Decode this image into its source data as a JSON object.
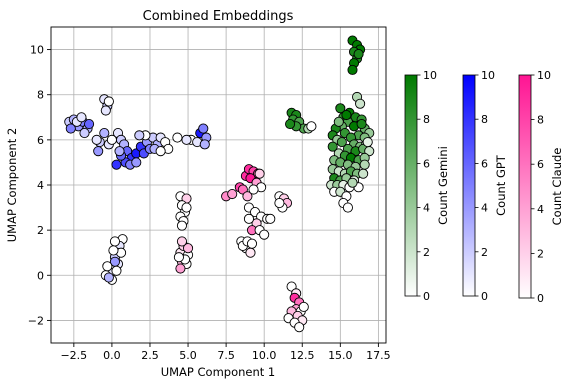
{
  "chart_data": {
    "type": "scatter",
    "title": "Combined Embeddings",
    "xlabel": "UMAP Component 1",
    "ylabel": "UMAP Component 2",
    "xlim": [
      -4,
      18
    ],
    "ylim": [
      -3,
      11
    ],
    "xticks": [
      -2.5,
      0.0,
      2.5,
      5.0,
      7.5,
      10.0,
      12.5,
      15.0,
      17.5
    ],
    "xtick_labels": [
      "−2.5",
      "0.0",
      "2.5",
      "5.0",
      "7.5",
      "10.0",
      "12.5",
      "15.0",
      "17.5"
    ],
    "yticks": [
      -2,
      0,
      2,
      4,
      6,
      8,
      10
    ],
    "ytick_labels": [
      "−2",
      "0",
      "2",
      "4",
      "6",
      "8",
      "10"
    ],
    "grid": true,
    "colorbars": [
      {
        "label": "Count Gemini",
        "color": "#007a00",
        "range": [
          0,
          10
        ],
        "ticks": [
          "0",
          "2",
          "4",
          "6",
          "8",
          "10"
        ]
      },
      {
        "label": "Count GPT",
        "color": "#0000ff",
        "range": [
          0,
          10
        ],
        "ticks": [
          "0",
          "2",
          "4",
          "6",
          "8",
          "10"
        ]
      },
      {
        "label": "Count Claude",
        "color": "#ff1493",
        "range": [
          0,
          10
        ],
        "ticks": [
          "0",
          "2",
          "4",
          "6",
          "8",
          "10"
        ]
      }
    ],
    "series": [
      {
        "model": "GPT",
        "points": [
          [
            -2.8,
            6.8,
            2
          ],
          [
            -2.5,
            6.9,
            3
          ],
          [
            -2.2,
            6.6,
            4
          ],
          [
            -1.9,
            6.8,
            5
          ],
          [
            -1.6,
            6.5,
            3
          ],
          [
            -2.7,
            6.5,
            5
          ],
          [
            -2.3,
            6.8,
            1
          ],
          [
            -1.5,
            6.7,
            6
          ],
          [
            -1.8,
            6.3,
            2
          ],
          [
            -2.0,
            7.0,
            1
          ],
          [
            -0.5,
            7.8,
            1
          ],
          [
            -0.3,
            7.5,
            2
          ],
          [
            -0.2,
            7.7,
            0
          ],
          [
            -0.4,
            7.3,
            1
          ],
          [
            -0.8,
            5.9,
            2
          ],
          [
            -0.5,
            6.3,
            3
          ],
          [
            -0.2,
            5.8,
            1
          ],
          [
            0.0,
            6.0,
            0
          ],
          [
            0.4,
            6.3,
            1
          ],
          [
            0.6,
            6.0,
            2
          ],
          [
            0.8,
            5.8,
            3
          ],
          [
            1.0,
            5.5,
            6
          ],
          [
            1.3,
            5.2,
            8
          ],
          [
            1.6,
            5.4,
            9
          ],
          [
            1.9,
            5.7,
            8
          ],
          [
            2.1,
            5.4,
            7
          ],
          [
            2.3,
            5.9,
            4
          ],
          [
            2.5,
            5.6,
            5
          ],
          [
            2.7,
            6.1,
            2
          ],
          [
            3.0,
            5.8,
            3
          ],
          [
            3.2,
            6.1,
            1
          ],
          [
            3.5,
            5.9,
            0
          ],
          [
            2.2,
            6.2,
            0
          ],
          [
            1.8,
            6.2,
            2
          ],
          [
            0.9,
            5.0,
            7
          ],
          [
            0.6,
            5.3,
            6
          ],
          [
            0.3,
            4.9,
            8
          ],
          [
            1.2,
            4.9,
            5
          ],
          [
            1.6,
            5.0,
            4
          ],
          [
            0.5,
            5.5,
            3
          ],
          [
            -0.9,
            5.5,
            4
          ],
          [
            -1.0,
            6.0,
            1
          ],
          [
            2.8,
            5.6,
            3
          ],
          [
            3.7,
            5.6,
            0
          ],
          [
            5.2,
            6.0,
            0
          ],
          [
            5.8,
            6.3,
            9
          ],
          [
            6.0,
            6.5,
            5
          ],
          [
            6.2,
            6.1,
            4
          ],
          [
            5.6,
            5.9,
            1
          ],
          [
            6.1,
            5.8,
            3
          ],
          [
            4.3,
            6.1,
            0
          ],
          [
            4.9,
            6.0,
            1
          ],
          [
            3.2,
            5.5,
            0
          ],
          [
            0.7,
            1.6,
            0
          ],
          [
            0.5,
            1.3,
            1
          ],
          [
            0.3,
            1.0,
            0
          ],
          [
            0.2,
            0.8,
            2
          ],
          [
            0.4,
            0.5,
            1
          ],
          [
            0.1,
            0.3,
            0
          ],
          [
            -0.1,
            0.1,
            1
          ],
          [
            -0.4,
            0.0,
            0
          ],
          [
            0.0,
            -0.2,
            0
          ],
          [
            0.2,
            0.6,
            4
          ],
          [
            -0.3,
            0.4,
            0
          ],
          [
            0.6,
            1.0,
            0
          ],
          [
            0.2,
            1.5,
            0
          ],
          [
            0.1,
            1.1,
            0
          ],
          [
            -0.2,
            -0.1,
            3
          ],
          [
            0.3,
            0.2,
            0
          ]
        ]
      },
      {
        "model": "Claude",
        "points": [
          [
            4.5,
            3.5,
            0
          ],
          [
            4.9,
            3.4,
            2
          ],
          [
            4.6,
            3.1,
            0
          ],
          [
            4.8,
            2.8,
            0
          ],
          [
            4.5,
            2.6,
            0
          ],
          [
            4.7,
            2.4,
            0
          ],
          [
            4.9,
            3.0,
            0
          ],
          [
            4.6,
            2.2,
            0
          ],
          [
            4.5,
            1.0,
            1
          ],
          [
            4.7,
            1.3,
            2
          ],
          [
            5.0,
            0.9,
            0
          ],
          [
            4.6,
            0.6,
            3
          ],
          [
            4.9,
            0.5,
            0
          ],
          [
            4.5,
            0.3,
            4
          ],
          [
            4.8,
            0.7,
            0
          ],
          [
            4.4,
            0.8,
            0
          ],
          [
            5.0,
            1.2,
            3
          ],
          [
            4.6,
            1.5,
            2
          ],
          [
            7.5,
            3.5,
            5
          ],
          [
            7.9,
            3.6,
            4
          ],
          [
            8.4,
            3.9,
            8
          ],
          [
            8.8,
            4.4,
            9
          ],
          [
            9.0,
            4.7,
            9
          ],
          [
            9.3,
            4.6,
            8
          ],
          [
            9.6,
            4.5,
            7
          ],
          [
            9.1,
            4.3,
            10
          ],
          [
            8.6,
            3.8,
            6
          ],
          [
            8.9,
            3.5,
            3
          ],
          [
            9.5,
            4.1,
            4
          ],
          [
            9.7,
            4.5,
            2
          ],
          [
            9.8,
            3.9,
            0
          ],
          [
            9.3,
            3.8,
            0
          ],
          [
            9.0,
            3.0,
            0
          ],
          [
            9.4,
            2.8,
            0
          ],
          [
            9.8,
            2.6,
            0
          ],
          [
            10.2,
            2.5,
            0
          ],
          [
            9.5,
            2.3,
            2
          ],
          [
            9.2,
            2.0,
            6
          ],
          [
            9.7,
            2.0,
            0
          ],
          [
            10.0,
            1.8,
            0
          ],
          [
            9.0,
            2.5,
            0
          ],
          [
            10.4,
            2.5,
            0
          ],
          [
            8.5,
            1.5,
            0
          ],
          [
            8.8,
            1.2,
            0
          ],
          [
            9.1,
            1.0,
            1
          ],
          [
            8.6,
            1.3,
            0
          ],
          [
            8.9,
            1.5,
            0
          ],
          [
            9.2,
            1.4,
            0
          ],
          [
            11.0,
            3.5,
            0
          ],
          [
            11.3,
            3.4,
            2
          ],
          [
            11.5,
            3.2,
            3
          ],
          [
            11.2,
            3.0,
            0
          ],
          [
            11.0,
            3.2,
            0
          ],
          [
            11.8,
            -0.5,
            0
          ],
          [
            12.1,
            -0.8,
            1
          ],
          [
            12.0,
            -1.0,
            9
          ],
          [
            12.3,
            -1.2,
            6
          ],
          [
            12.1,
            -1.5,
            4
          ],
          [
            11.8,
            -1.6,
            3
          ],
          [
            12.4,
            -1.6,
            0
          ],
          [
            12.2,
            -1.8,
            2
          ],
          [
            11.6,
            -1.9,
            0
          ],
          [
            12.5,
            -2.0,
            1
          ],
          [
            12.0,
            -2.1,
            0
          ],
          [
            12.3,
            -2.3,
            0
          ],
          [
            12.6,
            -1.4,
            0
          ]
        ]
      },
      {
        "model": "Gemini",
        "points": [
          [
            11.8,
            7.2,
            9
          ],
          [
            12.1,
            7.1,
            9
          ],
          [
            11.9,
            6.9,
            8
          ],
          [
            12.3,
            6.8,
            7
          ],
          [
            12.6,
            6.5,
            7
          ],
          [
            12.1,
            6.6,
            8
          ],
          [
            11.7,
            6.7,
            9
          ],
          [
            12.9,
            6.5,
            3
          ],
          [
            13.1,
            6.6,
            0
          ],
          [
            15.8,
            10.4,
            10
          ],
          [
            16.1,
            10.2,
            10
          ],
          [
            16.3,
            10.0,
            10
          ],
          [
            15.9,
            9.9,
            9
          ],
          [
            16.1,
            9.6,
            9
          ],
          [
            15.9,
            9.4,
            10
          ],
          [
            15.8,
            9.1,
            10
          ],
          [
            16.2,
            9.8,
            9
          ],
          [
            16.1,
            7.9,
            3
          ],
          [
            16.3,
            7.6,
            2
          ],
          [
            15.0,
            7.4,
            9
          ],
          [
            15.6,
            7.2,
            10
          ],
          [
            15.2,
            7.0,
            8
          ],
          [
            16.0,
            7.0,
            9
          ],
          [
            16.4,
            6.9,
            8
          ],
          [
            15.5,
            6.8,
            7
          ],
          [
            15.1,
            6.6,
            6
          ],
          [
            14.7,
            6.5,
            9
          ],
          [
            15.9,
            6.6,
            10
          ],
          [
            16.6,
            6.5,
            6
          ],
          [
            16.9,
            6.3,
            4
          ],
          [
            15.3,
            6.3,
            8
          ],
          [
            14.5,
            6.2,
            9
          ],
          [
            16.2,
            6.2,
            7
          ],
          [
            15.7,
            6.1,
            8
          ],
          [
            16.6,
            6.1,
            5
          ],
          [
            14.8,
            6.0,
            4
          ],
          [
            15.1,
            5.9,
            7
          ],
          [
            15.9,
            5.8,
            6
          ],
          [
            16.3,
            5.7,
            5
          ],
          [
            16.7,
            5.8,
            3
          ],
          [
            14.5,
            5.7,
            8
          ],
          [
            15.5,
            5.6,
            7
          ],
          [
            16.0,
            5.5,
            9
          ],
          [
            16.5,
            5.6,
            6
          ],
          [
            16.9,
            5.5,
            2
          ],
          [
            14.9,
            5.4,
            3
          ],
          [
            15.3,
            5.3,
            8
          ],
          [
            15.7,
            5.2,
            10
          ],
          [
            16.2,
            5.1,
            7
          ],
          [
            16.6,
            5.2,
            4
          ],
          [
            14.6,
            5.1,
            5
          ],
          [
            15.0,
            5.0,
            6
          ],
          [
            15.5,
            4.9,
            5
          ],
          [
            16.0,
            4.8,
            4
          ],
          [
            16.6,
            4.9,
            3
          ],
          [
            14.5,
            4.7,
            4
          ],
          [
            14.9,
            4.6,
            2
          ],
          [
            15.3,
            4.5,
            3
          ],
          [
            15.7,
            4.6,
            7
          ],
          [
            16.1,
            4.5,
            5
          ],
          [
            16.5,
            4.5,
            2
          ],
          [
            14.6,
            4.3,
            9
          ],
          [
            15.0,
            4.2,
            7
          ],
          [
            15.4,
            4.3,
            4
          ],
          [
            15.9,
            4.2,
            1
          ],
          [
            14.4,
            4.0,
            2
          ],
          [
            14.8,
            4.0,
            4
          ],
          [
            15.2,
            4.0,
            1
          ],
          [
            15.6,
            3.9,
            0
          ],
          [
            16.2,
            3.9,
            0
          ],
          [
            14.6,
            3.7,
            0
          ],
          [
            15.0,
            3.7,
            2
          ],
          [
            15.4,
            3.5,
            0
          ],
          [
            15.2,
            3.2,
            0
          ],
          [
            15.5,
            3.0,
            0
          ],
          [
            16.4,
            6.7,
            9
          ],
          [
            15.4,
            7.1,
            10
          ],
          [
            14.9,
            6.8,
            5
          ],
          [
            16.8,
            5.9,
            1
          ],
          [
            15.8,
            4.1,
            3
          ]
        ]
      }
    ]
  }
}
